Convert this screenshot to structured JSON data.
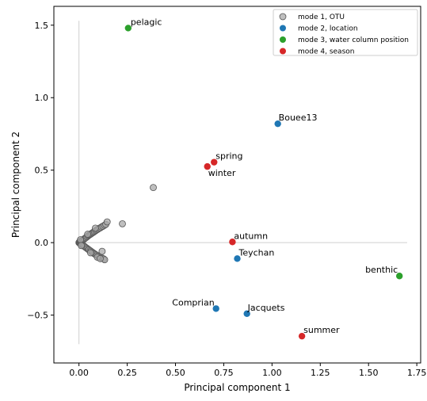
{
  "chart_data": {
    "type": "scatter",
    "xlabel": "Principal component 1",
    "ylabel": "Principal component 2",
    "xlim": [
      -0.13,
      1.77
    ],
    "ylim": [
      -0.83,
      1.63
    ],
    "xticks": [
      0.0,
      0.25,
      0.5,
      0.75,
      1.0,
      1.25,
      1.5,
      1.75
    ],
    "xtick_labels": [
      "0.00",
      "0.25",
      "0.50",
      "0.75",
      "1.00",
      "1.25",
      "1.50",
      "1.75"
    ],
    "yticks": [
      -0.5,
      0.0,
      0.5,
      1.0,
      1.5
    ],
    "ytick_labels": [
      "−0.5",
      "0.0",
      "0.5",
      "1.0",
      "1.5"
    ],
    "legend_position": "top-right",
    "colors": {
      "otu": "#a9a9a9",
      "location": "#1f77b4",
      "water": "#2ca02c",
      "season": "#d62728",
      "guide": "#cfcfcf"
    },
    "series": [
      {
        "name": "mode 1, OTU",
        "color_key": "otu",
        "points": [
          [
            0.0,
            0.0
          ],
          [
            0.002,
            0.003
          ],
          [
            0.004,
            -0.003
          ],
          [
            0.006,
            0.006
          ],
          [
            0.007,
            -0.006
          ],
          [
            0.01,
            0.009
          ],
          [
            0.011,
            -0.01
          ],
          [
            0.014,
            0.013
          ],
          [
            0.015,
            -0.013
          ],
          [
            0.018,
            0.017
          ],
          [
            0.02,
            -0.018
          ],
          [
            0.022,
            0.021
          ],
          [
            0.024,
            -0.022
          ],
          [
            0.027,
            0.025
          ],
          [
            0.028,
            -0.026
          ],
          [
            0.031,
            0.03
          ],
          [
            0.033,
            -0.031
          ],
          [
            0.036,
            0.034
          ],
          [
            0.038,
            -0.036
          ],
          [
            0.041,
            0.04
          ],
          [
            0.043,
            -0.041
          ],
          [
            0.046,
            0.045
          ],
          [
            0.048,
            -0.046
          ],
          [
            0.05,
            0.05
          ],
          [
            0.052,
            -0.05
          ],
          [
            0.055,
            0.054
          ],
          [
            0.058,
            -0.055
          ],
          [
            0.06,
            0.058
          ],
          [
            0.062,
            -0.06
          ],
          [
            0.065,
            0.063
          ],
          [
            0.068,
            -0.065
          ],
          [
            0.07,
            0.068
          ],
          [
            0.073,
            -0.07
          ],
          [
            0.075,
            0.072
          ],
          [
            0.078,
            -0.075
          ],
          [
            0.08,
            0.077
          ],
          [
            0.083,
            -0.079
          ],
          [
            0.086,
            0.082
          ],
          [
            0.088,
            -0.084
          ],
          [
            0.091,
            0.087
          ],
          [
            0.094,
            -0.088
          ],
          [
            0.097,
            0.092
          ],
          [
            0.1,
            -0.092
          ],
          [
            0.103,
            0.097
          ],
          [
            0.106,
            -0.097
          ],
          [
            0.11,
            0.102
          ],
          [
            0.113,
            -0.102
          ],
          [
            0.117,
            0.108
          ],
          [
            0.12,
            -0.107
          ],
          [
            0.124,
            0.113
          ],
          [
            0.128,
            -0.112
          ],
          [
            0.132,
            0.12
          ],
          [
            0.133,
            -0.118
          ],
          [
            0.139,
            0.126
          ],
          [
            0.146,
            0.143
          ],
          [
            0.008,
            0.02
          ],
          [
            0.012,
            -0.02
          ],
          [
            0.045,
            0.058
          ],
          [
            0.06,
            -0.07
          ],
          [
            0.085,
            0.1
          ],
          [
            0.095,
            -0.1
          ],
          [
            0.11,
            -0.11
          ],
          [
            0.12,
            -0.06
          ],
          [
            0.225,
            0.13
          ],
          [
            0.385,
            0.38
          ]
        ]
      },
      {
        "name": "mode 2, location",
        "color_key": "location",
        "points": [
          [
            1.03,
            0.82
          ],
          [
            0.82,
            -0.11
          ],
          [
            0.71,
            -0.455
          ],
          [
            0.87,
            -0.49
          ]
        ],
        "labels": [
          "Bouee13",
          "Teychan",
          "Comprian",
          "Jacquets"
        ]
      },
      {
        "name": "mode 3, water column position",
        "color_key": "water",
        "points": [
          [
            0.255,
            1.48
          ],
          [
            1.66,
            -0.23
          ]
        ],
        "labels": [
          "pelagic",
          "benthic"
        ]
      },
      {
        "name": "mode 4, season",
        "color_key": "season",
        "points": [
          [
            0.7,
            0.555
          ],
          [
            0.665,
            0.525
          ],
          [
            0.795,
            0.005
          ],
          [
            1.155,
            -0.645
          ]
        ],
        "labels": [
          "spring",
          "winter",
          "autumn",
          "summer"
        ]
      }
    ]
  }
}
